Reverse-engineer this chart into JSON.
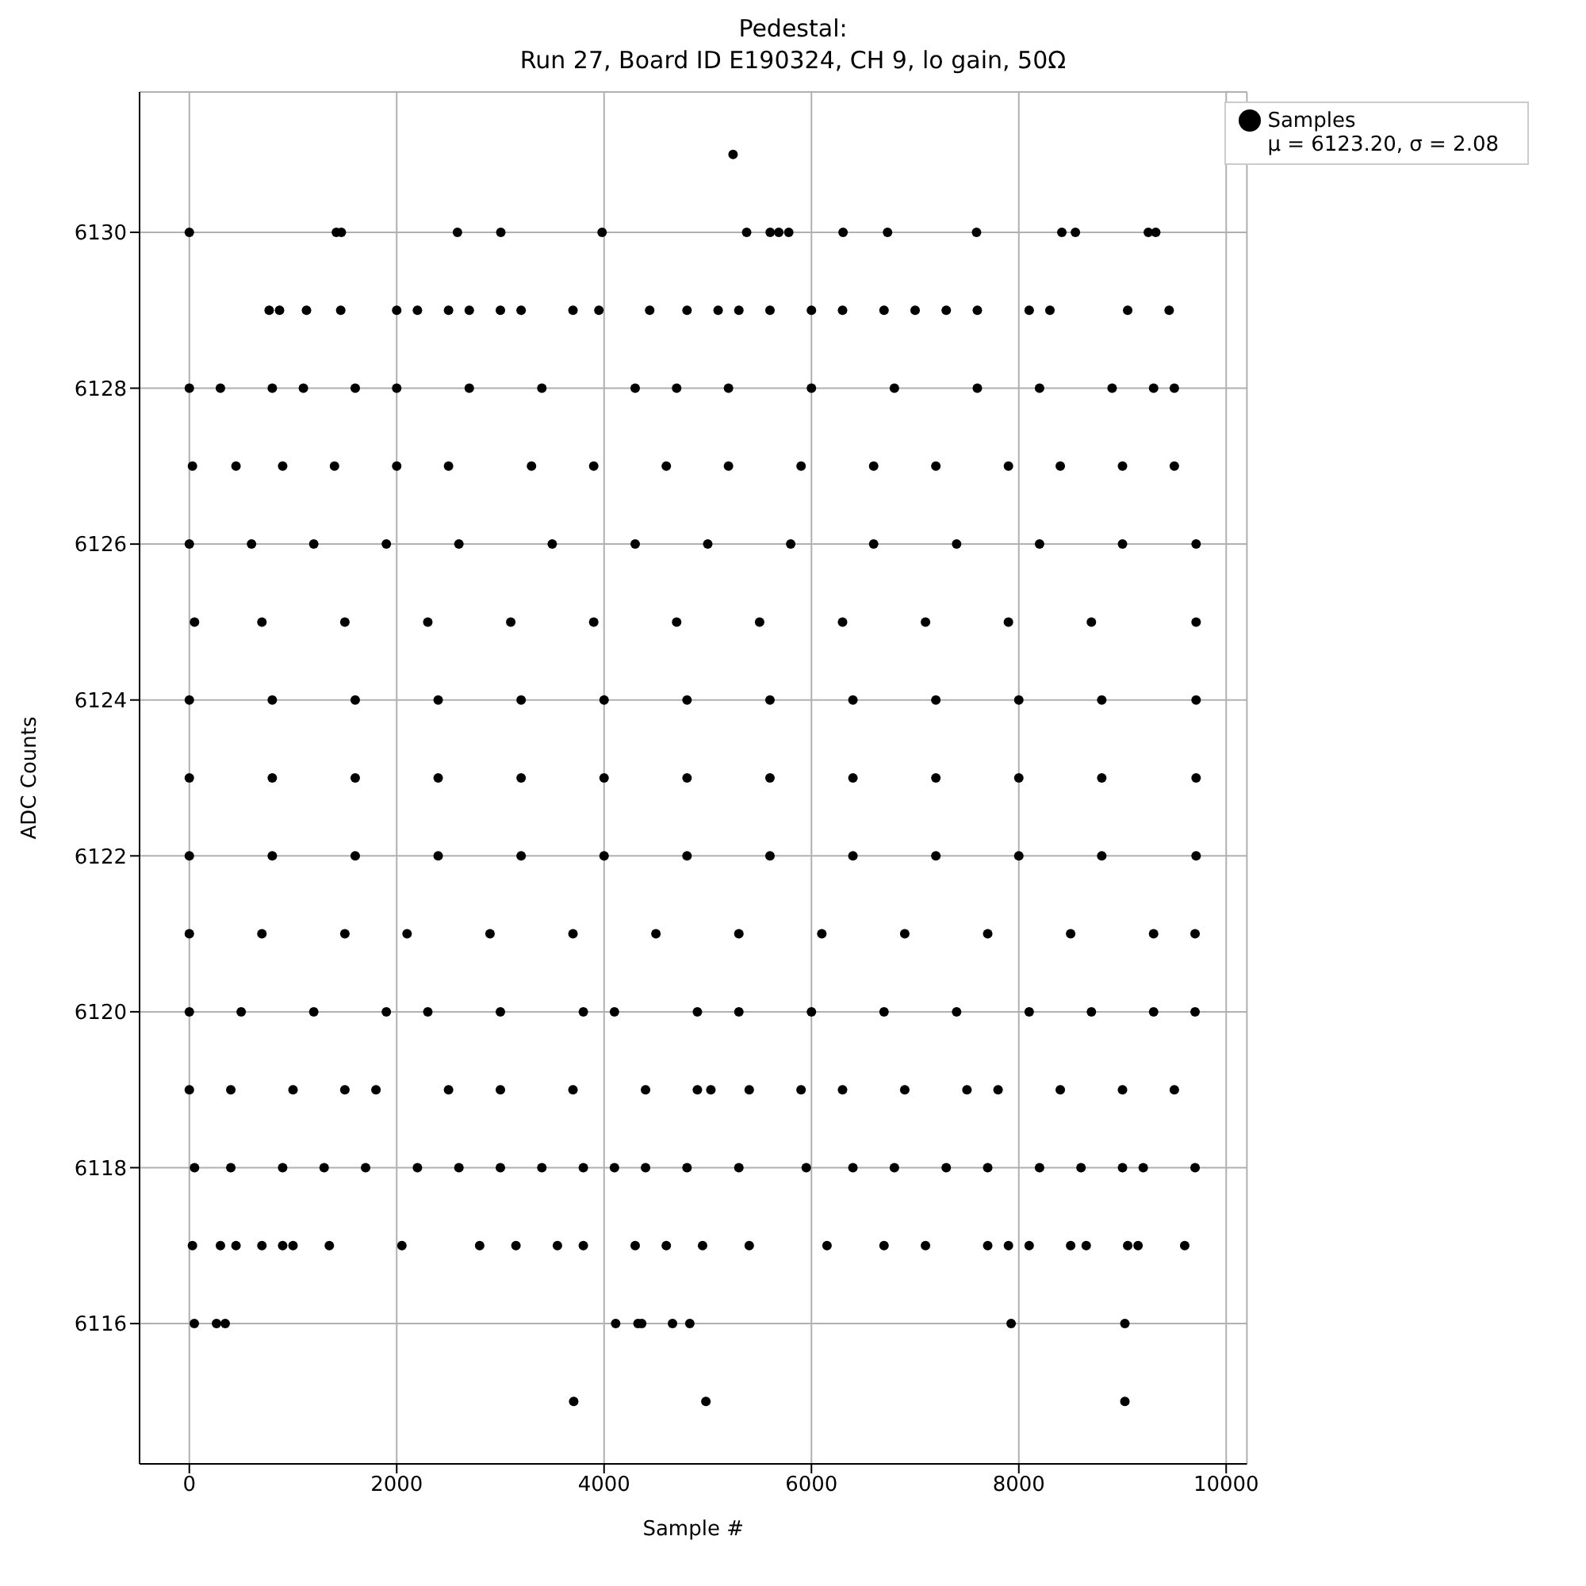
{
  "chart_data": {
    "type": "scatter",
    "title": "Pedestal:\nRun 27, Board ID E190324, CH 9, lo gain, 50Ω",
    "xlabel": "Sample #",
    "ylabel": "ADC Counts",
    "xlim": [
      -480,
      10200
    ],
    "xticks": [
      0,
      2000,
      4000,
      6000,
      8000,
      10000
    ],
    "ylim": [
      6114.2,
      6131.8
    ],
    "yticks": [
      6116,
      6118,
      6120,
      6122,
      6124,
      6126,
      6128,
      6130
    ],
    "grid": true,
    "legend": "top right",
    "marker": "circle",
    "series": [
      {
        "name": "Samples\nμ = 6123.20, σ = 2.08",
        "color": "#000000",
        "x": [
          5244,
          0,
          1418,
          1466,
          2586,
          3004,
          3981,
          5375,
          5602,
          5685,
          5781,
          6305,
          6734,
          7592,
          8415,
          8546,
          9249,
          9321,
          770,
          870,
          1130,
          1460,
          2000,
          2200,
          2500,
          2700,
          3000,
          3200,
          3700,
          3950,
          4440,
          4800,
          5100,
          5300,
          5600,
          6000,
          6300,
          6700,
          7000,
          7300,
          7600,
          8100,
          8300,
          9050,
          9450,
          0,
          300,
          800,
          1100,
          1600,
          2000,
          2700,
          3400,
          4300,
          4700,
          5200,
          6000,
          6800,
          7600,
          8200,
          8900,
          9300,
          9500,
          30,
          450,
          900,
          1400,
          2000,
          2500,
          3300,
          3900,
          4600,
          5200,
          5900,
          6600,
          7200,
          7900,
          8400,
          9000,
          9500,
          0,
          600,
          1200,
          1900,
          2600,
          3500,
          4300,
          5000,
          5800,
          6600,
          7400,
          8200,
          9000,
          9710,
          50,
          700,
          1500,
          2300,
          3100,
          3900,
          4700,
          5500,
          6300,
          7100,
          7900,
          8700,
          9710,
          0,
          800,
          1600,
          2400,
          3200,
          4000,
          4800,
          5600,
          6400,
          7200,
          8000,
          8800,
          9710,
          0,
          800,
          1600,
          2400,
          3200,
          4000,
          4800,
          5600,
          6400,
          7200,
          8000,
          8800,
          9710,
          0,
          800,
          1600,
          2400,
          3200,
          4000,
          4800,
          5600,
          6400,
          7200,
          8000,
          8800,
          9710,
          0,
          700,
          1500,
          2100,
          2900,
          3700,
          4500,
          5300,
          6100,
          6900,
          7700,
          8500,
          9300,
          9700,
          0,
          500,
          1200,
          1900,
          2300,
          3000,
          3800,
          4100,
          4900,
          5300,
          6000,
          6700,
          7400,
          8100,
          8700,
          9300,
          9700,
          0,
          400,
          1000,
          1500,
          1800,
          2500,
          3000,
          3700,
          4400,
          4900,
          5030,
          5400,
          5900,
          6300,
          6900,
          7500,
          7800,
          8400,
          9000,
          9500,
          50,
          400,
          900,
          1300,
          1700,
          2200,
          2600,
          3000,
          3400,
          3800,
          4100,
          4400,
          4800,
          5300,
          5950,
          6400,
          6800,
          7300,
          7700,
          8200,
          8600,
          9000,
          9200,
          9700,
          30,
          300,
          450,
          700,
          900,
          1000,
          1350,
          2050,
          2800,
          3150,
          3550,
          3800,
          4300,
          4600,
          4950,
          5400,
          6150,
          6700,
          7100,
          7700,
          7900,
          8100,
          8500,
          8650,
          9050,
          9150,
          9600,
          48,
          262,
          346,
          4112,
          4327,
          4363,
          4660,
          4827,
          7926,
          9023,
          3707,
          4982,
          9023
        ],
        "values": [
          6131,
          6130,
          6130,
          6130,
          6130,
          6130,
          6130,
          6130,
          6130,
          6130,
          6130,
          6130,
          6130,
          6130,
          6130,
          6130,
          6130,
          6130,
          6129,
          6129,
          6129,
          6129,
          6129,
          6129,
          6129,
          6129,
          6129,
          6129,
          6129,
          6129,
          6129,
          6129,
          6129,
          6129,
          6129,
          6129,
          6129,
          6129,
          6129,
          6129,
          6129,
          6129,
          6129,
          6129,
          6129,
          6128,
          6128,
          6128,
          6128,
          6128,
          6128,
          6128,
          6128,
          6128,
          6128,
          6128,
          6128,
          6128,
          6128,
          6128,
          6128,
          6128,
          6128,
          6127,
          6127,
          6127,
          6127,
          6127,
          6127,
          6127,
          6127,
          6127,
          6127,
          6127,
          6127,
          6127,
          6127,
          6127,
          6127,
          6127,
          6126,
          6126,
          6126,
          6126,
          6126,
          6126,
          6126,
          6126,
          6126,
          6126,
          6126,
          6126,
          6126,
          6126,
          6125,
          6125,
          6125,
          6125,
          6125,
          6125,
          6125,
          6125,
          6125,
          6125,
          6125,
          6125,
          6125,
          6124,
          6124,
          6124,
          6124,
          6124,
          6124,
          6124,
          6124,
          6124,
          6124,
          6124,
          6124,
          6124,
          6123,
          6123,
          6123,
          6123,
          6123,
          6123,
          6123,
          6123,
          6123,
          6123,
          6123,
          6123,
          6123,
          6122,
          6122,
          6122,
          6122,
          6122,
          6122,
          6122,
          6122,
          6122,
          6122,
          6122,
          6122,
          6122,
          6121,
          6121,
          6121,
          6121,
          6121,
          6121,
          6121,
          6121,
          6121,
          6121,
          6121,
          6121,
          6121,
          6121,
          6120,
          6120,
          6120,
          6120,
          6120,
          6120,
          6120,
          6120,
          6120,
          6120,
          6120,
          6120,
          6120,
          6120,
          6120,
          6120,
          6120,
          6119,
          6119,
          6119,
          6119,
          6119,
          6119,
          6119,
          6119,
          6119,
          6119,
          6119,
          6119,
          6119,
          6119,
          6119,
          6119,
          6119,
          6119,
          6119,
          6119,
          6118,
          6118,
          6118,
          6118,
          6118,
          6118,
          6118,
          6118,
          6118,
          6118,
          6118,
          6118,
          6118,
          6118,
          6118,
          6118,
          6118,
          6118,
          6118,
          6118,
          6118,
          6118,
          6118,
          6118,
          6117,
          6117,
          6117,
          6117,
          6117,
          6117,
          6117,
          6117,
          6117,
          6117,
          6117,
          6117,
          6117,
          6117,
          6117,
          6117,
          6117,
          6117,
          6117,
          6117,
          6117,
          6117,
          6117,
          6117,
          6117,
          6117,
          6117,
          6116,
          6116,
          6116,
          6116,
          6116,
          6116,
          6116,
          6116,
          6116,
          6116,
          6115,
          6115,
          6115
        ]
      }
    ]
  }
}
